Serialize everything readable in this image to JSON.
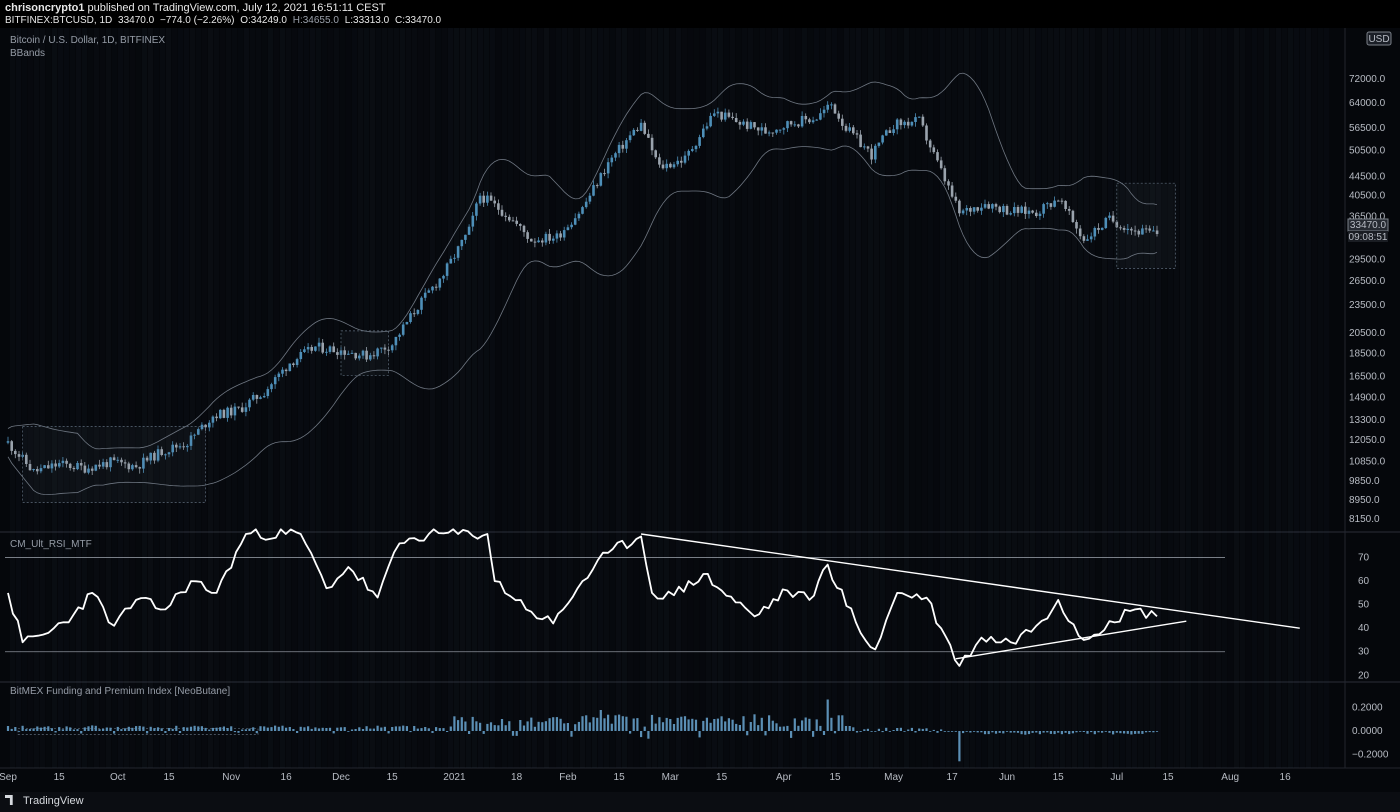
{
  "header": {
    "author": "chrisoncrypto1",
    "published": "published on TradingView.com, July 12, 2021 16:51:11 CEST",
    "symbol_line": "BITFINEX:BTCUSD, 1D",
    "last": "33470.0",
    "change": "−774.0 (−2.26%)",
    "open": "O:34249.0",
    "high": "H:34655.0",
    "low": "L:33313.0",
    "close": "C:33470.0"
  },
  "colors": {
    "background": "#05070b",
    "candle_up": "#4e8fb8",
    "candle_down": "#9aa3ad",
    "bands": "#6f7782",
    "rsi_line": "#ffffff",
    "histogram": "#5b8fb5"
  },
  "footer": {
    "brand": "TradingView"
  },
  "chart_data": [
    {
      "type": "candlestick",
      "title": "Bitcoin / U.S. Dollar, 1D, BITFINEX",
      "indicator": "BBands",
      "currency_badge": "USD",
      "scale": "log",
      "y_ticks": [
        72000.0,
        64000.0,
        56500.0,
        50500.0,
        44500.0,
        40500.0,
        36500.0,
        29500.0,
        26500.0,
        23500.0,
        20500.0,
        18500.0,
        16500.0,
        14900.0,
        13300.0,
        12050.0,
        10850.0,
        9850.0,
        8950.0,
        8150.0
      ],
      "price_label": "33470.0",
      "countdown_label": "09:08:51",
      "close_series": [
        {
          "date": "2020-09-01",
          "close": 11900
        },
        {
          "date": "2020-09-08",
          "close": 10300
        },
        {
          "date": "2020-09-15",
          "close": 10700
        },
        {
          "date": "2020-09-22",
          "close": 10500
        },
        {
          "date": "2020-09-29",
          "close": 10800
        },
        {
          "date": "2020-10-06",
          "close": 10600
        },
        {
          "date": "2020-10-13",
          "close": 11400
        },
        {
          "date": "2020-10-20",
          "close": 11900
        },
        {
          "date": "2020-10-27",
          "close": 13600
        },
        {
          "date": "2020-11-03",
          "close": 14000
        },
        {
          "date": "2020-11-10",
          "close": 15300
        },
        {
          "date": "2020-11-17",
          "close": 17700
        },
        {
          "date": "2020-11-24",
          "close": 19100
        },
        {
          "date": "2020-12-01",
          "close": 18800
        },
        {
          "date": "2020-12-08",
          "close": 18300
        },
        {
          "date": "2020-12-15",
          "close": 19400
        },
        {
          "date": "2020-12-22",
          "close": 23400
        },
        {
          "date": "2020-12-29",
          "close": 27400
        },
        {
          "date": "2021-01-05",
          "close": 34000
        },
        {
          "date": "2021-01-08",
          "close": 40500
        },
        {
          "date": "2021-01-15",
          "close": 37000
        },
        {
          "date": "2021-01-22",
          "close": 32500
        },
        {
          "date": "2021-01-29",
          "close": 33000
        },
        {
          "date": "2021-02-05",
          "close": 38000
        },
        {
          "date": "2021-02-12",
          "close": 47500
        },
        {
          "date": "2021-02-19",
          "close": 55500
        },
        {
          "date": "2021-02-21",
          "close": 57500
        },
        {
          "date": "2021-02-26",
          "close": 46500
        },
        {
          "date": "2021-03-05",
          "close": 48500
        },
        {
          "date": "2021-03-13",
          "close": 61000
        },
        {
          "date": "2021-03-20",
          "close": 58000
        },
        {
          "date": "2021-03-27",
          "close": 55500
        },
        {
          "date": "2021-04-03",
          "close": 58000
        },
        {
          "date": "2021-04-10",
          "close": 59500
        },
        {
          "date": "2021-04-14",
          "close": 63500
        },
        {
          "date": "2021-04-18",
          "close": 56500
        },
        {
          "date": "2021-04-25",
          "close": 49500
        },
        {
          "date": "2021-05-01",
          "close": 57500
        },
        {
          "date": "2021-05-08",
          "close": 58500
        },
        {
          "date": "2021-05-12",
          "close": 49500
        },
        {
          "date": "2021-05-19",
          "close": 37000
        },
        {
          "date": "2021-05-26",
          "close": 39000
        },
        {
          "date": "2021-06-02",
          "close": 37500
        },
        {
          "date": "2021-06-09",
          "close": 37300
        },
        {
          "date": "2021-06-15",
          "close": 40000
        },
        {
          "date": "2021-06-22",
          "close": 32500
        },
        {
          "date": "2021-06-29",
          "close": 36000
        },
        {
          "date": "2021-07-06",
          "close": 34000
        },
        {
          "date": "2021-07-12",
          "close": 33470
        }
      ]
    },
    {
      "type": "line",
      "title": "CM_Ult_RSI_MTF",
      "y_ticks": [
        70,
        60,
        50,
        40,
        30,
        20
      ],
      "ylim": [
        18,
        80
      ],
      "levels": [
        70,
        30
      ],
      "trendline_upper": {
        "x": [
          "2021-02-21",
          "2021-08-20"
        ],
        "y": [
          80,
          40
        ]
      },
      "trendline_lower": {
        "x": [
          "2021-05-18",
          "2021-07-20"
        ],
        "y": [
          27,
          43
        ]
      },
      "series": [
        {
          "x": "2020-09-01",
          "y": 55
        },
        {
          "x": "2020-09-05",
          "y": 34
        },
        {
          "x": "2020-09-12",
          "y": 38
        },
        {
          "x": "2020-09-19",
          "y": 46
        },
        {
          "x": "2020-09-24",
          "y": 55
        },
        {
          "x": "2020-09-30",
          "y": 41
        },
        {
          "x": "2020-10-06",
          "y": 52
        },
        {
          "x": "2020-10-14",
          "y": 48
        },
        {
          "x": "2020-10-21",
          "y": 60
        },
        {
          "x": "2020-10-28",
          "y": 55
        },
        {
          "x": "2020-11-05",
          "y": 80
        },
        {
          "x": "2020-11-20",
          "y": 80
        },
        {
          "x": "2020-11-27",
          "y": 57
        },
        {
          "x": "2020-12-03",
          "y": 66
        },
        {
          "x": "2020-12-11",
          "y": 53
        },
        {
          "x": "2020-12-17",
          "y": 76
        },
        {
          "x": "2020-12-25",
          "y": 80
        },
        {
          "x": "2021-01-10",
          "y": 80
        },
        {
          "x": "2021-01-12",
          "y": 60
        },
        {
          "x": "2021-01-22",
          "y": 47
        },
        {
          "x": "2021-01-28",
          "y": 42
        },
        {
          "x": "2021-02-05",
          "y": 60
        },
        {
          "x": "2021-02-12",
          "y": 72
        },
        {
          "x": "2021-02-21",
          "y": 79
        },
        {
          "x": "2021-02-24",
          "y": 55
        },
        {
          "x": "2021-03-02",
          "y": 54
        },
        {
          "x": "2021-03-10",
          "y": 63
        },
        {
          "x": "2021-03-15",
          "y": 56
        },
        {
          "x": "2021-03-24",
          "y": 45
        },
        {
          "x": "2021-04-02",
          "y": 56
        },
        {
          "x": "2021-04-08",
          "y": 52
        },
        {
          "x": "2021-04-13",
          "y": 67
        },
        {
          "x": "2021-04-22",
          "y": 38
        },
        {
          "x": "2021-04-26",
          "y": 31
        },
        {
          "x": "2021-05-02",
          "y": 55
        },
        {
          "x": "2021-05-10",
          "y": 53
        },
        {
          "x": "2021-05-14",
          "y": 40
        },
        {
          "x": "2021-05-19",
          "y": 24
        },
        {
          "x": "2021-05-25",
          "y": 36
        },
        {
          "x": "2021-06-02",
          "y": 34
        },
        {
          "x": "2021-06-09",
          "y": 41
        },
        {
          "x": "2021-06-15",
          "y": 52
        },
        {
          "x": "2021-06-22",
          "y": 35
        },
        {
          "x": "2021-06-29",
          "y": 43
        },
        {
          "x": "2021-07-06",
          "y": 48
        },
        {
          "x": "2021-07-12",
          "y": 45
        }
      ]
    },
    {
      "type": "bar",
      "title": "BitMEX Funding and Premium Index [NeoButane]",
      "y_ticks": [
        0.2,
        0.0,
        -0.2
      ],
      "y_tick_labels": [
        "0.2000",
        "0.0000",
        "−0.2000"
      ],
      "ylim": [
        -0.3,
        0.3
      ],
      "series": [
        {
          "name": "funding",
          "period": [
            "2020-09-01",
            "2021-01-01"
          ],
          "typical": 0.03
        },
        {
          "name": "funding",
          "period": [
            "2021-01-01",
            "2021-04-20"
          ],
          "typical": 0.09
        },
        {
          "name": "funding",
          "peaks": [
            {
              "x": "2021-02-10",
              "y": 0.18
            },
            {
              "x": "2021-04-13",
              "y": 0.27
            }
          ]
        },
        {
          "name": "funding",
          "period": [
            "2021-04-20",
            "2021-05-15"
          ],
          "typical": 0.02
        },
        {
          "name": "funding",
          "dips": [
            {
              "x": "2021-05-19",
              "y": -0.26
            }
          ]
        },
        {
          "name": "funding",
          "period": [
            "2021-05-20",
            "2021-07-12"
          ],
          "typical": -0.02
        }
      ]
    }
  ],
  "x_axis": {
    "ticks": [
      "Sep",
      "15",
      "Oct",
      "15",
      "Nov",
      "16",
      "Dec",
      "15",
      "2021",
      "18",
      "Feb",
      "15",
      "Mar",
      "15",
      "Apr",
      "15",
      "May",
      "17",
      "Jun",
      "15",
      "Jul",
      "15",
      "Aug",
      "16"
    ]
  }
}
